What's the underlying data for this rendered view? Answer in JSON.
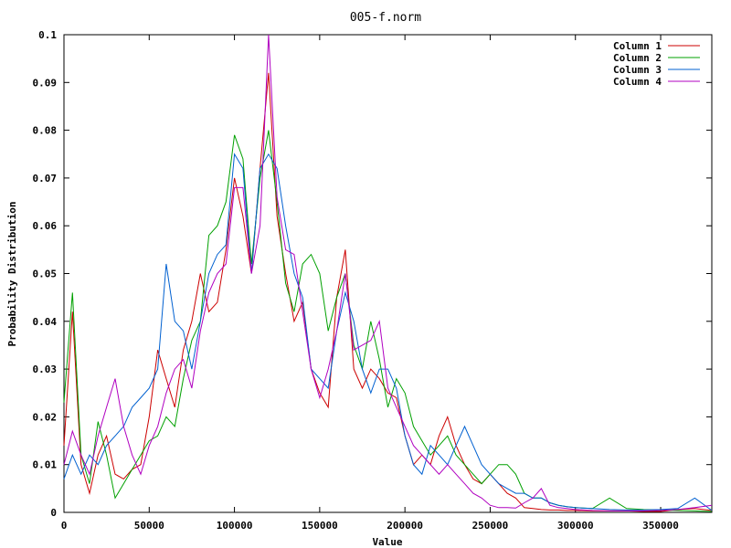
{
  "chart_data": {
    "type": "line",
    "title": "005-f.norm",
    "xlabel": "Value",
    "ylabel": "Probability Distribution",
    "xlim": [
      0,
      380000
    ],
    "ylim": [
      0,
      0.1
    ],
    "xticks": [
      0,
      50000,
      100000,
      150000,
      200000,
      250000,
      300000,
      350000
    ],
    "xtick_labels": [
      "0",
      "50000",
      "100000",
      "150000",
      "200000",
      "250000",
      "300000",
      "350000"
    ],
    "yticks": [
      0,
      0.01,
      0.02,
      0.03,
      0.04,
      0.05,
      0.06,
      0.07,
      0.08,
      0.09,
      0.1
    ],
    "ytick_labels": [
      "0",
      "0.01",
      "0.02",
      "0.03",
      "0.04",
      "0.05",
      "0.06",
      "0.07",
      "0.08",
      "0.09",
      "0.1"
    ],
    "grid": false,
    "legend_position": "top-right",
    "x": [
      0,
      5000,
      10000,
      15000,
      20000,
      25000,
      30000,
      35000,
      40000,
      45000,
      50000,
      55000,
      60000,
      65000,
      70000,
      75000,
      80000,
      85000,
      90000,
      95000,
      100000,
      105000,
      110000,
      115000,
      120000,
      125000,
      130000,
      135000,
      140000,
      145000,
      150000,
      155000,
      160000,
      165000,
      170000,
      175000,
      180000,
      185000,
      190000,
      195000,
      200000,
      205000,
      210000,
      215000,
      220000,
      225000,
      230000,
      235000,
      240000,
      245000,
      250000,
      255000,
      260000,
      265000,
      270000,
      275000,
      280000,
      285000,
      290000,
      295000,
      300000,
      310000,
      320000,
      330000,
      340000,
      350000,
      360000,
      370000,
      380000
    ],
    "series": [
      {
        "name": "Column 1",
        "color": "#cc0000",
        "values": [
          0.014,
          0.042,
          0.01,
          0.004,
          0.012,
          0.016,
          0.008,
          0.007,
          0.009,
          0.01,
          0.02,
          0.034,
          0.028,
          0.022,
          0.034,
          0.04,
          0.05,
          0.042,
          0.044,
          0.055,
          0.07,
          0.062,
          0.05,
          0.072,
          0.092,
          0.062,
          0.05,
          0.04,
          0.044,
          0.03,
          0.025,
          0.022,
          0.045,
          0.055,
          0.03,
          0.026,
          0.03,
          0.028,
          0.025,
          0.024,
          0.016,
          0.01,
          0.012,
          0.01,
          0.016,
          0.02,
          0.014,
          0.01,
          0.007,
          0.006,
          0.008,
          0.006,
          0.004,
          0.003,
          0.001,
          0.0008,
          0.0006,
          0.0005,
          0.0005,
          0.0004,
          0.0004,
          0.0003,
          0.0003,
          0.0003,
          0.0002,
          0.0002,
          0.0006,
          0.0008,
          0.0004
        ]
      },
      {
        "name": "Column 2",
        "color": "#00a000",
        "values": [
          0.023,
          0.046,
          0.012,
          0.006,
          0.019,
          0.012,
          0.003,
          0.006,
          0.009,
          0.012,
          0.015,
          0.016,
          0.02,
          0.018,
          0.028,
          0.036,
          0.04,
          0.058,
          0.06,
          0.065,
          0.079,
          0.074,
          0.052,
          0.07,
          0.08,
          0.065,
          0.048,
          0.042,
          0.052,
          0.054,
          0.05,
          0.038,
          0.045,
          0.05,
          0.035,
          0.03,
          0.04,
          0.032,
          0.022,
          0.028,
          0.025,
          0.018,
          0.015,
          0.012,
          0.014,
          0.016,
          0.012,
          0.01,
          0.008,
          0.006,
          0.008,
          0.01,
          0.01,
          0.008,
          0.004,
          0.003,
          0.003,
          0.002,
          0.0015,
          0.0012,
          0.001,
          0.0008,
          0.003,
          0.0008,
          0.0006,
          0.0005,
          0.0004,
          0.0003,
          0.0002
        ]
      },
      {
        "name": "Column 3",
        "color": "#0060d0",
        "values": [
          0.007,
          0.012,
          0.008,
          0.012,
          0.01,
          0.014,
          0.016,
          0.018,
          0.022,
          0.024,
          0.026,
          0.03,
          0.052,
          0.04,
          0.038,
          0.03,
          0.04,
          0.05,
          0.054,
          0.056,
          0.075,
          0.072,
          0.05,
          0.072,
          0.075,
          0.072,
          0.06,
          0.05,
          0.045,
          0.03,
          0.028,
          0.026,
          0.038,
          0.046,
          0.04,
          0.03,
          0.025,
          0.03,
          0.03,
          0.026,
          0.016,
          0.01,
          0.008,
          0.014,
          0.012,
          0.01,
          0.014,
          0.018,
          0.014,
          0.01,
          0.008,
          0.006,
          0.005,
          0.004,
          0.004,
          0.003,
          0.003,
          0.002,
          0.0015,
          0.0012,
          0.001,
          0.0008,
          0.0006,
          0.0005,
          0.0005,
          0.0006,
          0.0008,
          0.003,
          0.0004
        ]
      },
      {
        "name": "Column 4",
        "color": "#b000c0",
        "values": [
          0.01,
          0.017,
          0.012,
          0.008,
          0.016,
          0.022,
          0.028,
          0.018,
          0.012,
          0.008,
          0.014,
          0.018,
          0.025,
          0.03,
          0.032,
          0.026,
          0.038,
          0.046,
          0.05,
          0.052,
          0.068,
          0.068,
          0.05,
          0.06,
          0.1,
          0.066,
          0.055,
          0.054,
          0.042,
          0.03,
          0.024,
          0.03,
          0.038,
          0.05,
          0.034,
          0.035,
          0.036,
          0.04,
          0.026,
          0.022,
          0.018,
          0.014,
          0.012,
          0.01,
          0.008,
          0.01,
          0.008,
          0.006,
          0.004,
          0.003,
          0.0015,
          0.001,
          0.001,
          0.0009,
          0.002,
          0.003,
          0.005,
          0.0015,
          0.001,
          0.0008,
          0.0006,
          0.0004,
          0.0003,
          0.0003,
          0.0003,
          0.0004,
          0.0006,
          0.001,
          0.0015
        ]
      }
    ]
  }
}
